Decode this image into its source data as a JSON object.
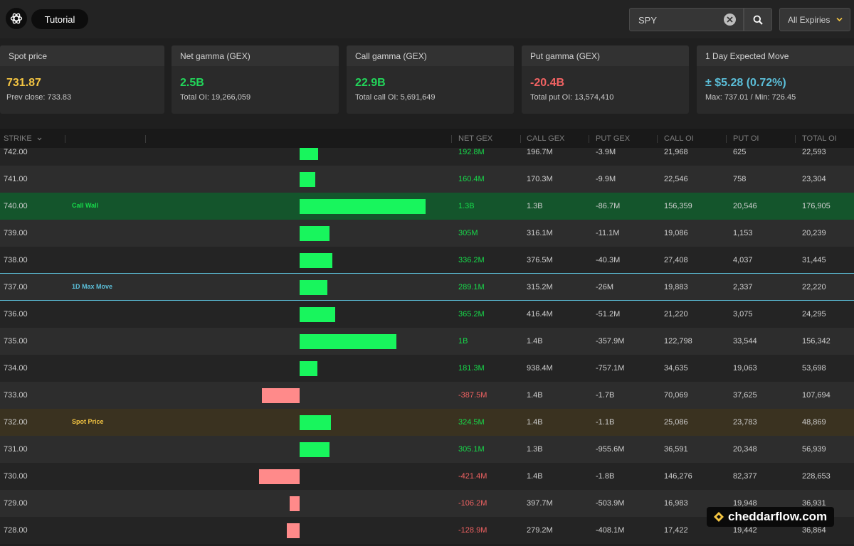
{
  "header": {
    "tutorial_label": "Tutorial",
    "search_value": "SPY",
    "expiries_label": "All Expiries"
  },
  "colors": {
    "positive": "#17d94a",
    "negative": "#f06262",
    "spot": "#f4c542",
    "expected_move": "#5bbed8",
    "call_wall_row": "#14552c",
    "spot_row": "#3a3220",
    "positive_bar": "#18f55d",
    "negative_bar": "#ff8a8a"
  },
  "cards": [
    {
      "title": "Spot price",
      "value": "731.87",
      "sub": "Prev close: 733.83",
      "color": "#f4c542"
    },
    {
      "title": "Net gamma (GEX)",
      "value": "2.5B",
      "sub": "Total OI: 19,266,059",
      "color": "#22d65a"
    },
    {
      "title": "Call gamma (GEX)",
      "value": "22.9B",
      "sub": "Total call OI: 5,691,649",
      "color": "#22d65a"
    },
    {
      "title": "Put gamma (GEX)",
      "value": "-20.4B",
      "sub": "Total put OI: 13,574,410",
      "color": "#f06262"
    },
    {
      "title": "1 Day Expected Move",
      "value": "± $5.28 (0.72%)",
      "sub": "Max: 737.01 / Min: 726.45",
      "color": "#5bbed8"
    }
  ],
  "table": {
    "columns": [
      "STRIKE",
      "NET GEX",
      "CALL GEX",
      "PUT GEX",
      "CALL OI",
      "PUT OI",
      "TOTAL OI"
    ],
    "rows": [
      {
        "strike": "742.00",
        "label": "",
        "net_gex": "192.8M",
        "net_value": 192.8,
        "call_gex": "196.7M",
        "put_gex": "-3.9M",
        "call_oi": "21,968",
        "put_oi": "625",
        "total_oi": "22,593"
      },
      {
        "strike": "741.00",
        "label": "",
        "net_gex": "160.4M",
        "net_value": 160.4,
        "call_gex": "170.3M",
        "put_gex": "-9.9M",
        "call_oi": "22,546",
        "put_oi": "758",
        "total_oi": "23,304"
      },
      {
        "strike": "740.00",
        "label": "Call Wall",
        "net_gex": "1.3B",
        "net_value": 1300,
        "call_gex": "1.3B",
        "put_gex": "-86.7M",
        "call_oi": "156,359",
        "put_oi": "20,546",
        "total_oi": "176,905"
      },
      {
        "strike": "739.00",
        "label": "",
        "net_gex": "305M",
        "net_value": 305,
        "call_gex": "316.1M",
        "put_gex": "-11.1M",
        "call_oi": "19,086",
        "put_oi": "1,153",
        "total_oi": "20,239"
      },
      {
        "strike": "738.00",
        "label": "",
        "net_gex": "336.2M",
        "net_value": 336.2,
        "call_gex": "376.5M",
        "put_gex": "-40.3M",
        "call_oi": "27,408",
        "put_oi": "4,037",
        "total_oi": "31,445"
      },
      {
        "strike": "737.00",
        "label": "1D Max Move",
        "net_gex": "289.1M",
        "net_value": 289.1,
        "call_gex": "315.2M",
        "put_gex": "-26M",
        "call_oi": "19,883",
        "put_oi": "2,337",
        "total_oi": "22,220"
      },
      {
        "strike": "736.00",
        "label": "",
        "net_gex": "365.2M",
        "net_value": 365.2,
        "call_gex": "416.4M",
        "put_gex": "-51.2M",
        "call_oi": "21,220",
        "put_oi": "3,075",
        "total_oi": "24,295"
      },
      {
        "strike": "735.00",
        "label": "",
        "net_gex": "1B",
        "net_value": 1000,
        "call_gex": "1.4B",
        "put_gex": "-357.9M",
        "call_oi": "122,798",
        "put_oi": "33,544",
        "total_oi": "156,342"
      },
      {
        "strike": "734.00",
        "label": "",
        "net_gex": "181.3M",
        "net_value": 181.3,
        "call_gex": "938.4M",
        "put_gex": "-757.1M",
        "call_oi": "34,635",
        "put_oi": "19,063",
        "total_oi": "53,698"
      },
      {
        "strike": "733.00",
        "label": "",
        "net_gex": "-387.5M",
        "net_value": -387.5,
        "call_gex": "1.4B",
        "put_gex": "-1.7B",
        "call_oi": "70,069",
        "put_oi": "37,625",
        "total_oi": "107,694"
      },
      {
        "strike": "732.00",
        "label": "Spot Price",
        "net_gex": "324.5M",
        "net_value": 324.5,
        "call_gex": "1.4B",
        "put_gex": "-1.1B",
        "call_oi": "25,086",
        "put_oi": "23,783",
        "total_oi": "48,869"
      },
      {
        "strike": "731.00",
        "label": "",
        "net_gex": "305.1M",
        "net_value": 305.1,
        "call_gex": "1.3B",
        "put_gex": "-955.6M",
        "call_oi": "36,591",
        "put_oi": "20,348",
        "total_oi": "56,939"
      },
      {
        "strike": "730.00",
        "label": "",
        "net_gex": "-421.4M",
        "net_value": -421.4,
        "call_gex": "1.4B",
        "put_gex": "-1.8B",
        "call_oi": "146,276",
        "put_oi": "82,377",
        "total_oi": "228,653"
      },
      {
        "strike": "729.00",
        "label": "",
        "net_gex": "-106.2M",
        "net_value": -106.2,
        "call_gex": "397.7M",
        "put_gex": "-503.9M",
        "call_oi": "16,983",
        "put_oi": "19,948",
        "total_oi": "36,931"
      },
      {
        "strike": "728.00",
        "label": "",
        "net_gex": "-128.9M",
        "net_value": -128.9,
        "call_gex": "279.2M",
        "put_gex": "-408.1M",
        "call_oi": "17,422",
        "put_oi": "19,442",
        "total_oi": "36,864"
      }
    ]
  },
  "watermark": {
    "text": "cheddarflow.com"
  }
}
